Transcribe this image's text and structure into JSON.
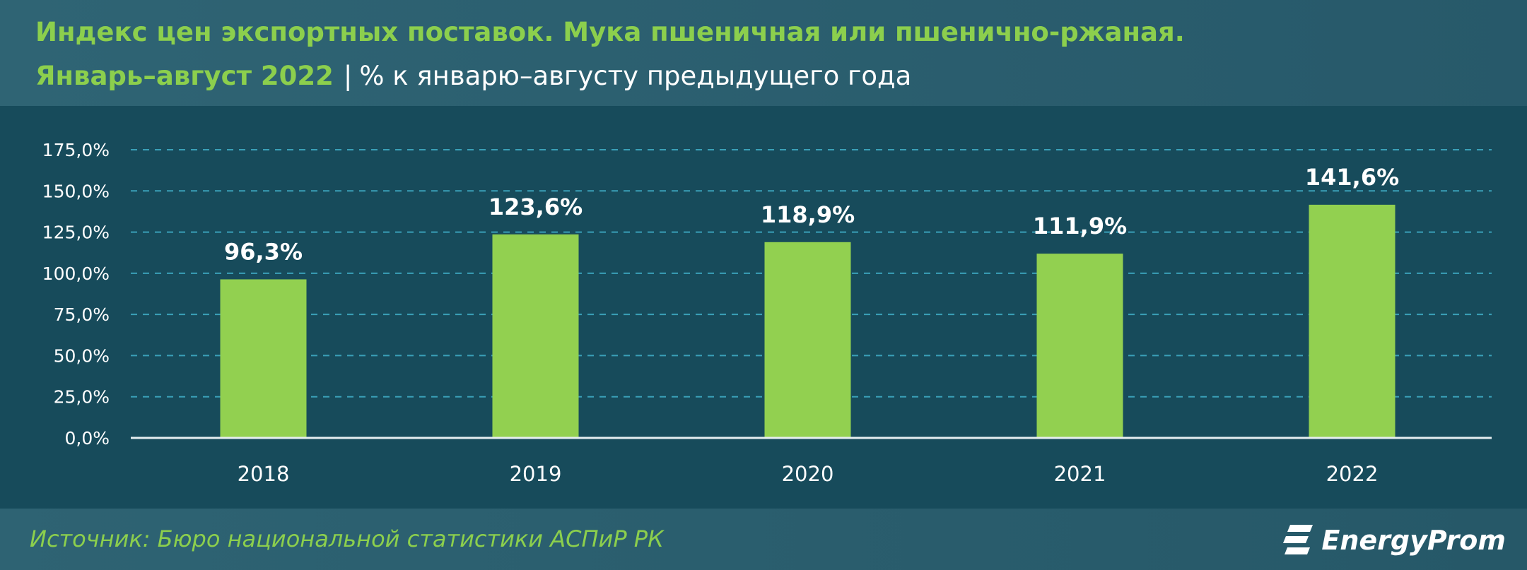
{
  "header": {
    "title_line1": "Индекс цен экспортных поставок. Мука пшеничная или пшенично-ржаная.",
    "title_period": "Январь–август 2022",
    "title_separator": "|",
    "title_unit": "% к январю–августу предыдущего года"
  },
  "colors": {
    "accent_green": "#8ccf4d",
    "bar_green": "#92d050",
    "background": "#174b5b"
  },
  "chart_data": {
    "type": "bar",
    "categories": [
      "2018",
      "2019",
      "2020",
      "2021",
      "2022"
    ],
    "values": [
      96.3,
      123.6,
      118.9,
      111.9,
      141.6
    ],
    "data_labels": [
      "96,3%",
      "123,6%",
      "118,9%",
      "111,9%",
      "141,6%"
    ],
    "ylim": [
      0,
      175
    ],
    "y_ticks": [
      0,
      25,
      50,
      75,
      100,
      125,
      150,
      175
    ],
    "y_tick_labels": [
      "0,0%",
      "25,0%",
      "50,0%",
      "75,0%",
      "100,0%",
      "125,0%",
      "150,0%",
      "175,0%"
    ],
    "grid": "horizontal dashed",
    "legend": "none",
    "xlabel": "",
    "ylabel": ""
  },
  "footer": {
    "source": "Источник: Бюро национальной статистики АСПиР РК",
    "logo_text": "EnergyProm"
  }
}
